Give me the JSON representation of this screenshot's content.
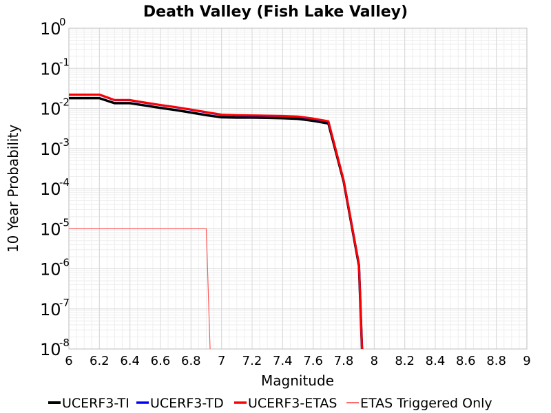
{
  "chart_data": {
    "type": "line",
    "title": "Death Valley (Fish Lake Valley)",
    "xlabel": "Magnitude",
    "ylabel": "10 Year Probability",
    "xlim": [
      6,
      9
    ],
    "ylim": [
      1e-08,
      1
    ],
    "yscale": "log",
    "grid": true,
    "legend_position": "bottom",
    "x_ticks": [
      "6",
      "6.2",
      "6.4",
      "6.6",
      "6.8",
      "7",
      "7.2",
      "7.4",
      "7.6",
      "7.8",
      "8",
      "8.2",
      "8.4",
      "8.6",
      "8.8",
      "9"
    ],
    "y_ticks": [
      {
        "base": "10",
        "exp": "0",
        "value": 1
      },
      {
        "base": "10",
        "exp": "-1",
        "value": 0.1
      },
      {
        "base": "10",
        "exp": "-2",
        "value": 0.01
      },
      {
        "base": "10",
        "exp": "-3",
        "value": 0.001
      },
      {
        "base": "10",
        "exp": "-4",
        "value": 0.0001
      },
      {
        "base": "10",
        "exp": "-5",
        "value": 1e-05
      },
      {
        "base": "10",
        "exp": "-6",
        "value": 1e-06
      },
      {
        "base": "10",
        "exp": "-7",
        "value": 1e-07
      },
      {
        "base": "10",
        "exp": "-8",
        "value": 1e-08
      }
    ],
    "series": [
      {
        "name": "UCERF3-TI",
        "color": "#000000",
        "x": [
          6.0,
          6.2,
          6.3,
          6.4,
          6.5,
          6.6,
          6.7,
          6.8,
          6.9,
          7.0,
          7.1,
          7.2,
          7.3,
          7.4,
          7.5,
          7.6,
          7.7,
          7.8,
          7.9,
          7.92
        ],
        "y": [
          0.018,
          0.018,
          0.0135,
          0.0135,
          0.0118,
          0.0103,
          0.0091,
          0.0079,
          0.0068,
          0.006,
          0.0059,
          0.0059,
          0.0058,
          0.0057,
          0.0055,
          0.0049,
          0.0042,
          0.00015,
          1.2e-06,
          1e-08
        ]
      },
      {
        "name": "UCERF3-TD",
        "color": "#0000ff",
        "x": [
          6.0,
          6.2,
          6.3,
          6.4,
          6.5,
          6.6,
          6.7,
          6.8,
          6.9,
          7.0,
          7.1,
          7.2,
          7.3,
          7.4,
          7.5,
          7.6,
          7.7,
          7.8,
          7.9,
          7.92
        ],
        "y": [
          0.022,
          0.022,
          0.016,
          0.016,
          0.0138,
          0.0121,
          0.0107,
          0.0093,
          0.008,
          0.0069,
          0.0067,
          0.0066,
          0.0065,
          0.0064,
          0.0062,
          0.0055,
          0.0047,
          0.00016,
          1.3e-06,
          1e-08
        ]
      },
      {
        "name": "UCERF3-ETAS",
        "color": "#ff0000",
        "x": [
          6.0,
          6.2,
          6.3,
          6.4,
          6.5,
          6.6,
          6.7,
          6.8,
          6.9,
          7.0,
          7.1,
          7.2,
          7.3,
          7.4,
          7.5,
          7.6,
          7.7,
          7.8,
          7.9,
          7.92
        ],
        "y": [
          0.0222,
          0.0222,
          0.0162,
          0.0162,
          0.014,
          0.0122,
          0.0108,
          0.0094,
          0.0081,
          0.007,
          0.0068,
          0.0067,
          0.0066,
          0.0065,
          0.0063,
          0.0056,
          0.0048,
          0.00016,
          1.3e-06,
          1e-08
        ]
      },
      {
        "name": "ETAS Triggered Only",
        "color": "#ff5555",
        "x": [
          6.0,
          6.9,
          6.925
        ],
        "y": [
          1e-05,
          1e-05,
          1e-08
        ]
      }
    ]
  }
}
